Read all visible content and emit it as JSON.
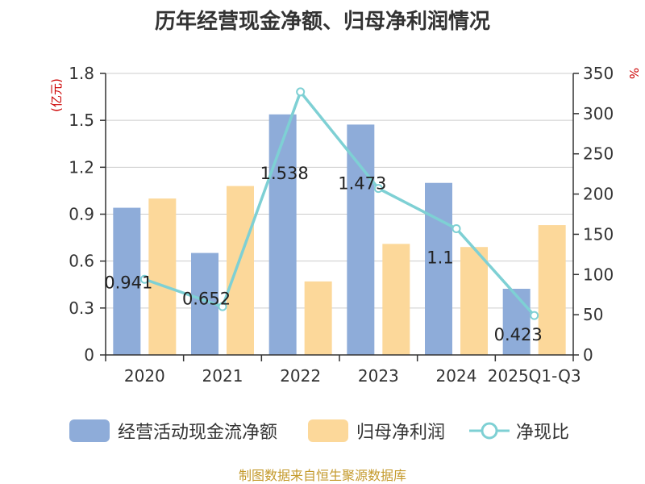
{
  "chart_data": {
    "type": "bar",
    "title": "历年经营现金净额、归母净利润情况",
    "categories": [
      "2020",
      "2021",
      "2022",
      "2023",
      "2024",
      "2025Q1-Q3"
    ],
    "ylabel_left": "(亿元)",
    "ylabel_right": "%",
    "ylim_left": [
      0,
      1.8
    ],
    "yticks_left": [
      "0",
      "0.3",
      "0.6",
      "0.9",
      "1.2",
      "1.5",
      "1.8"
    ],
    "ylim_right": [
      0,
      350
    ],
    "yticks_right": [
      "0",
      "50",
      "100",
      "150",
      "200",
      "250",
      "300",
      "350"
    ],
    "grid": true,
    "legend_position": "bottom",
    "series": [
      {
        "name": "经营活动现金流净额",
        "kind": "bar",
        "axis": "left",
        "color": "#8eacd9",
        "values": [
          0.941,
          0.652,
          1.538,
          1.473,
          1.1,
          0.423
        ],
        "labels": [
          "0.941",
          "0.652",
          "1.538",
          "1.473",
          "1.1",
          "0.423"
        ]
      },
      {
        "name": "归母净利润",
        "kind": "bar",
        "axis": "left",
        "color": "#fcd89a",
        "values": [
          1.0,
          1.08,
          0.47,
          0.71,
          0.69,
          0.83
        ]
      },
      {
        "name": "净现比",
        "kind": "line",
        "axis": "right",
        "color": "#7ed0d4",
        "values": [
          94,
          60,
          327,
          207,
          157,
          49
        ]
      }
    ]
  },
  "source": "制图数据来自恒生聚源数据库"
}
